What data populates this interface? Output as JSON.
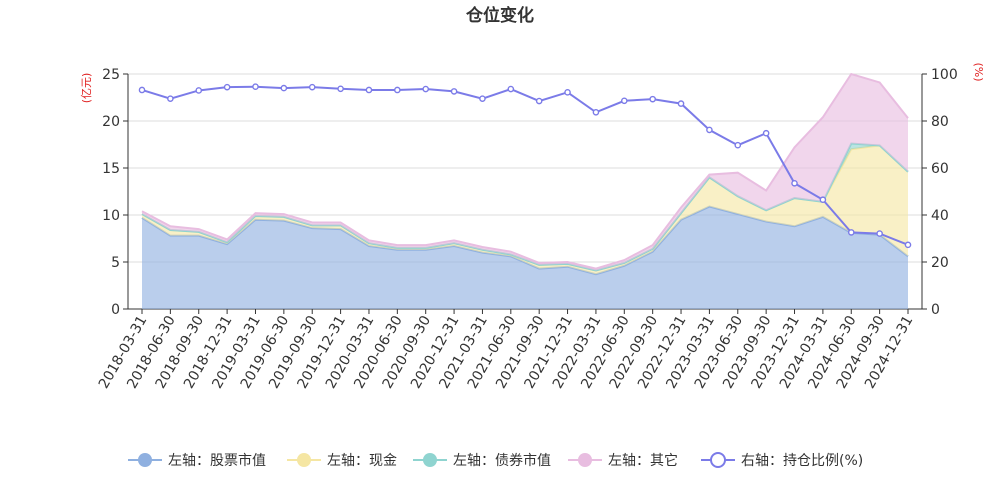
{
  "chart_data": {
    "type": "area",
    "title": "仓位变化",
    "y_left_unit": "(亿元)",
    "y_right_unit": "(%)",
    "ylim_left": [
      0,
      25
    ],
    "ylim_right": [
      0,
      100
    ],
    "y_left_ticks": [
      "0",
      "5",
      "10",
      "15",
      "20",
      "25"
    ],
    "y_right_ticks": [
      "0",
      "20",
      "40",
      "60",
      "80",
      "100"
    ],
    "grid": true,
    "legend_position": "bottom",
    "categories": [
      "2018-03-31",
      "2018-06-30",
      "2018-09-30",
      "2018-12-31",
      "2019-03-31",
      "2019-06-30",
      "2019-09-30",
      "2019-12-31",
      "2020-03-31",
      "2020-06-30",
      "2020-09-30",
      "2020-12-31",
      "2021-03-31",
      "2021-06-30",
      "2021-09-30",
      "2021-12-31",
      "2022-03-31",
      "2022-06-30",
      "2022-09-30",
      "2022-12-31",
      "2023-03-31",
      "2023-06-30",
      "2023-09-30",
      "2023-12-31",
      "2024-03-31",
      "2024-06-30",
      "2024-09-30",
      "2024-12-31"
    ],
    "series": [
      {
        "name": "左轴：股票市值",
        "axis": "left",
        "kind": "stack",
        "color": "#8fb0e0",
        "values": [
          9.7,
          7.8,
          7.8,
          6.9,
          9.5,
          9.4,
          8.6,
          8.5,
          6.7,
          6.3,
          6.3,
          6.7,
          6.0,
          5.6,
          4.3,
          4.5,
          3.7,
          4.6,
          6.1,
          9.5,
          10.9,
          10.1,
          9.3,
          8.8,
          9.8,
          8.1,
          7.9,
          5.6
        ]
      },
      {
        "name": "左轴：现金",
        "axis": "left",
        "kind": "stack",
        "color": "#f5e6a3",
        "values": [
          0.4,
          0.6,
          0.4,
          0.2,
          0.4,
          0.4,
          0.3,
          0.4,
          0.3,
          0.2,
          0.2,
          0.3,
          0.3,
          0.2,
          0.4,
          0.3,
          0.4,
          0.3,
          0.3,
          0.7,
          3.1,
          1.9,
          1.2,
          3.0,
          1.6,
          8.9,
          9.5,
          9.0
        ]
      },
      {
        "name": "左轴：债券市值",
        "axis": "left",
        "kind": "stack",
        "color": "#8fd4d0",
        "values": [
          0,
          0,
          0,
          0,
          0,
          0,
          0,
          0,
          0,
          0,
          0,
          0,
          0,
          0,
          0,
          0,
          0,
          0,
          0,
          0,
          0,
          0,
          0,
          0,
          0,
          0.6,
          0,
          0
        ]
      },
      {
        "name": "左轴：其它",
        "axis": "left",
        "kind": "stack",
        "color": "#e8bde0",
        "values": [
          0.3,
          0.4,
          0.3,
          0.3,
          0.3,
          0.3,
          0.3,
          0.3,
          0.3,
          0.3,
          0.3,
          0.3,
          0.3,
          0.3,
          0.2,
          0.2,
          0.2,
          0.3,
          0.4,
          0.6,
          0.3,
          2.5,
          2.1,
          5.4,
          9.0,
          7.4,
          6.7,
          5.7
        ]
      },
      {
        "name": "右轴：持仓比例(%)",
        "axis": "right",
        "kind": "line",
        "color": "#7b7be8",
        "values": [
          93.2,
          89.5,
          93.0,
          94.4,
          94.6,
          94.0,
          94.4,
          93.7,
          93.2,
          93.2,
          93.6,
          92.6,
          89.5,
          93.6,
          88.5,
          92.2,
          83.7,
          88.6,
          89.3,
          87.4,
          76.2,
          69.7,
          74.8,
          53.5,
          46.5,
          32.6,
          32.1,
          27.3
        ]
      }
    ]
  },
  "legend_icon_color_line": "#7b7be8",
  "unit_color": "#e02020"
}
